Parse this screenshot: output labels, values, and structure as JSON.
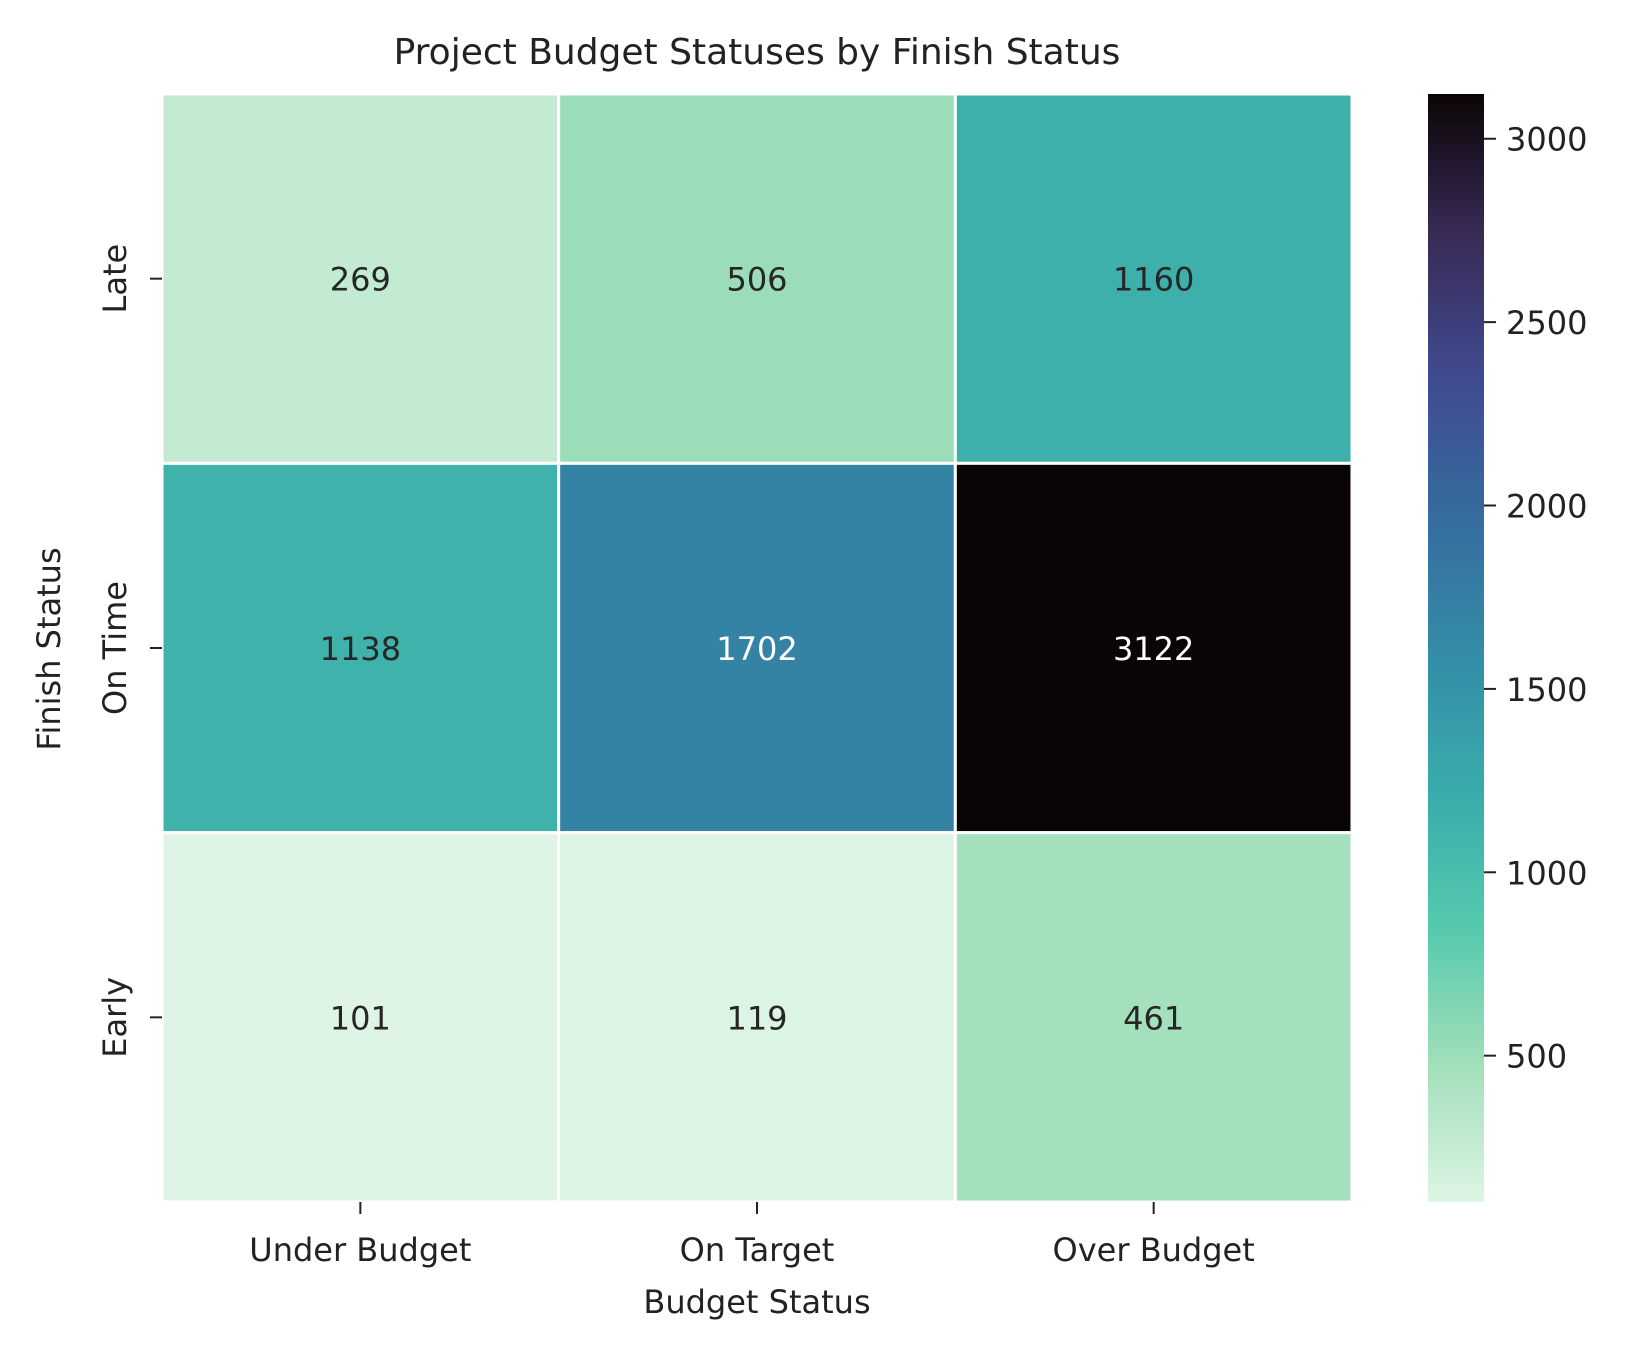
{
  "chart_data": {
    "type": "heatmap",
    "title": "Project Budget Statuses by Finish Status",
    "xlabel": "Budget Status",
    "ylabel": "Finish Status",
    "x_categories": [
      "Under Budget",
      "On Target",
      "Over Budget"
    ],
    "y_categories": [
      "Late",
      "On Time",
      "Early"
    ],
    "values": [
      [
        269,
        506,
        1160
      ],
      [
        1138,
        1702,
        3122
      ],
      [
        101,
        119,
        461
      ]
    ],
    "colorbar": {
      "min": 101,
      "max": 3122,
      "ticks": [
        500,
        1000,
        1500,
        2000,
        2500,
        3000
      ],
      "colormap": "mako_r",
      "stops": [
        "#def5e5",
        "#a0dfb9",
        "#54c9ad",
        "#38aaac",
        "#348ba6",
        "#366a9f",
        "#40498e",
        "#382a54",
        "#0b0405"
      ]
    },
    "grid": false,
    "annotate": true
  }
}
